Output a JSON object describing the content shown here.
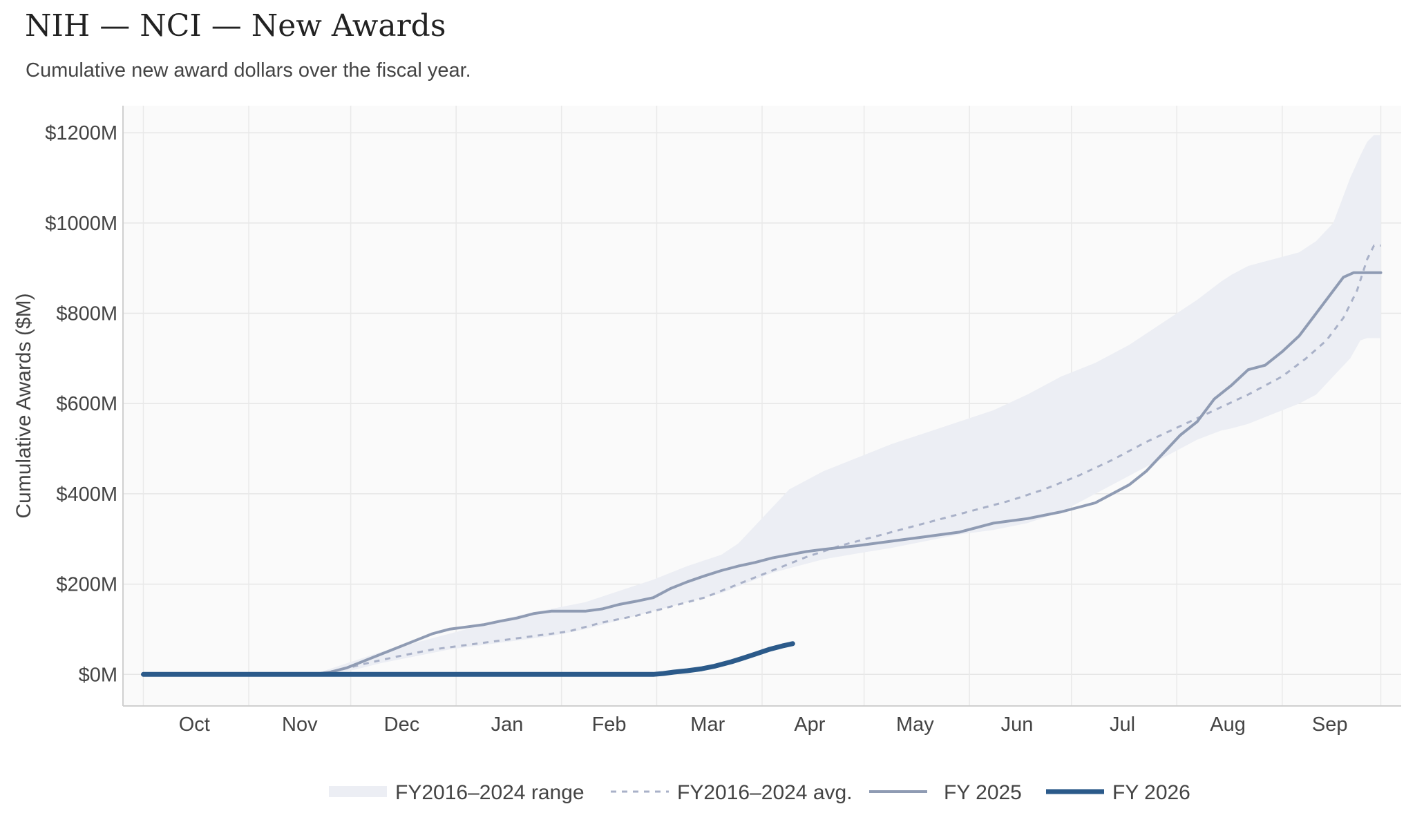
{
  "title": "NIH — NCI — New Awards",
  "subtitle": "Cumulative new award dollars over the fiscal year.",
  "chart_data": {
    "type": "line",
    "xlabel": "",
    "ylabel": "Cumulative Awards ($M)",
    "x_domain_days": [
      0,
      364
    ],
    "xlim": [
      -6,
      370
    ],
    "ylim": [
      -70,
      1260
    ],
    "y_ticks": [
      0,
      200,
      400,
      600,
      800,
      1000,
      1200
    ],
    "y_tick_labels": [
      "$0M",
      "$200M",
      "$400M",
      "$600M",
      "$800M",
      "$1000M",
      "$1200M"
    ],
    "x_ticks": [
      {
        "label": "Oct",
        "x": 15
      },
      {
        "label": "Nov",
        "x": 46
      },
      {
        "label": "Dec",
        "x": 76
      },
      {
        "label": "Jan",
        "x": 107
      },
      {
        "label": "Feb",
        "x": 137
      },
      {
        "label": "Mar",
        "x": 166
      },
      {
        "label": "Apr",
        "x": 196
      },
      {
        "label": "May",
        "x": 227
      },
      {
        "label": "Jun",
        "x": 257
      },
      {
        "label": "Jul",
        "x": 288
      },
      {
        "label": "Aug",
        "x": 319
      },
      {
        "label": "Sep",
        "x": 349
      }
    ],
    "grid": true,
    "legend_position": "bottom",
    "series": [
      {
        "name": "FY2016–2024 range",
        "kind": "band",
        "color": "#eceef4",
        "x": [
          0,
          50,
          56,
          62,
          70,
          80,
          90,
          100,
          110,
          120,
          130,
          140,
          150,
          160,
          170,
          175,
          180,
          185,
          190,
          200,
          210,
          220,
          230,
          240,
          250,
          260,
          270,
          280,
          290,
          300,
          310,
          317,
          320,
          325,
          330,
          335,
          340,
          345,
          350,
          355,
          358,
          360,
          362,
          364
        ],
        "low": [
          0,
          0,
          3,
          10,
          25,
          40,
          55,
          65,
          75,
          85,
          100,
          120,
          140,
          160,
          180,
          195,
          210,
          225,
          235,
          255,
          268,
          280,
          295,
          310,
          320,
          335,
          360,
          400,
          440,
          480,
          520,
          540,
          545,
          555,
          570,
          585,
          600,
          620,
          660,
          700,
          740,
          745,
          745,
          745
        ],
        "high": [
          0,
          0,
          15,
          30,
          50,
          70,
          90,
          110,
          130,
          145,
          160,
          185,
          210,
          240,
          265,
          290,
          330,
          370,
          410,
          450,
          480,
          510,
          535,
          560,
          585,
          620,
          660,
          690,
          730,
          780,
          830,
          870,
          885,
          905,
          915,
          925,
          935,
          960,
          1000,
          1100,
          1150,
          1180,
          1195,
          1195
        ]
      },
      {
        "name": "FY2016–2024 avg.",
        "kind": "line",
        "dash": true,
        "color": "#a9b1c8",
        "x": [
          0,
          50,
          58,
          66,
          75,
          85,
          95,
          105,
          115,
          125,
          135,
          145,
          155,
          165,
          175,
          185,
          195,
          205,
          215,
          225,
          235,
          245,
          255,
          265,
          275,
          285,
          295,
          305,
          315,
          325,
          335,
          342,
          348,
          353,
          357,
          360,
          362,
          364
        ],
        "y": [
          0,
          0,
          10,
          25,
          40,
          55,
          65,
          75,
          85,
          95,
          115,
          130,
          150,
          170,
          200,
          230,
          260,
          285,
          305,
          325,
          345,
          365,
          385,
          410,
          440,
          475,
          515,
          550,
          585,
          620,
          660,
          700,
          740,
          790,
          850,
          920,
          950,
          950
        ]
      },
      {
        "name": "FY 2025",
        "kind": "line",
        "color": "#8f9bb3",
        "x": [
          0,
          50,
          55,
          60,
          65,
          70,
          75,
          80,
          85,
          90,
          95,
          100,
          105,
          110,
          115,
          120,
          125,
          130,
          135,
          140,
          145,
          150,
          155,
          160,
          165,
          170,
          175,
          180,
          185,
          190,
          195,
          200,
          210,
          220,
          230,
          240,
          250,
          260,
          270,
          280,
          290,
          295,
          300,
          305,
          310,
          315,
          320,
          325,
          330,
          335,
          340,
          345,
          350,
          353,
          356,
          359,
          362,
          364
        ],
        "y": [
          0,
          0,
          5,
          15,
          30,
          45,
          60,
          75,
          90,
          100,
          105,
          110,
          118,
          125,
          135,
          140,
          140,
          140,
          145,
          155,
          162,
          170,
          190,
          205,
          218,
          230,
          240,
          248,
          258,
          265,
          272,
          277,
          285,
          295,
          305,
          315,
          335,
          345,
          360,
          380,
          420,
          450,
          490,
          530,
          560,
          610,
          640,
          675,
          685,
          715,
          750,
          800,
          850,
          880,
          890,
          890,
          890,
          890
        ]
      },
      {
        "name": "FY 2026",
        "kind": "line",
        "color": "#2b5a8a",
        "x": [
          0,
          50,
          100,
          150,
          153,
          156,
          160,
          164,
          168,
          170,
          173,
          176,
          180,
          184,
          188,
          191
        ],
        "y": [
          0,
          0,
          0,
          0,
          2,
          5,
          8,
          12,
          18,
          22,
          28,
          35,
          45,
          55,
          63,
          68
        ]
      }
    ]
  }
}
